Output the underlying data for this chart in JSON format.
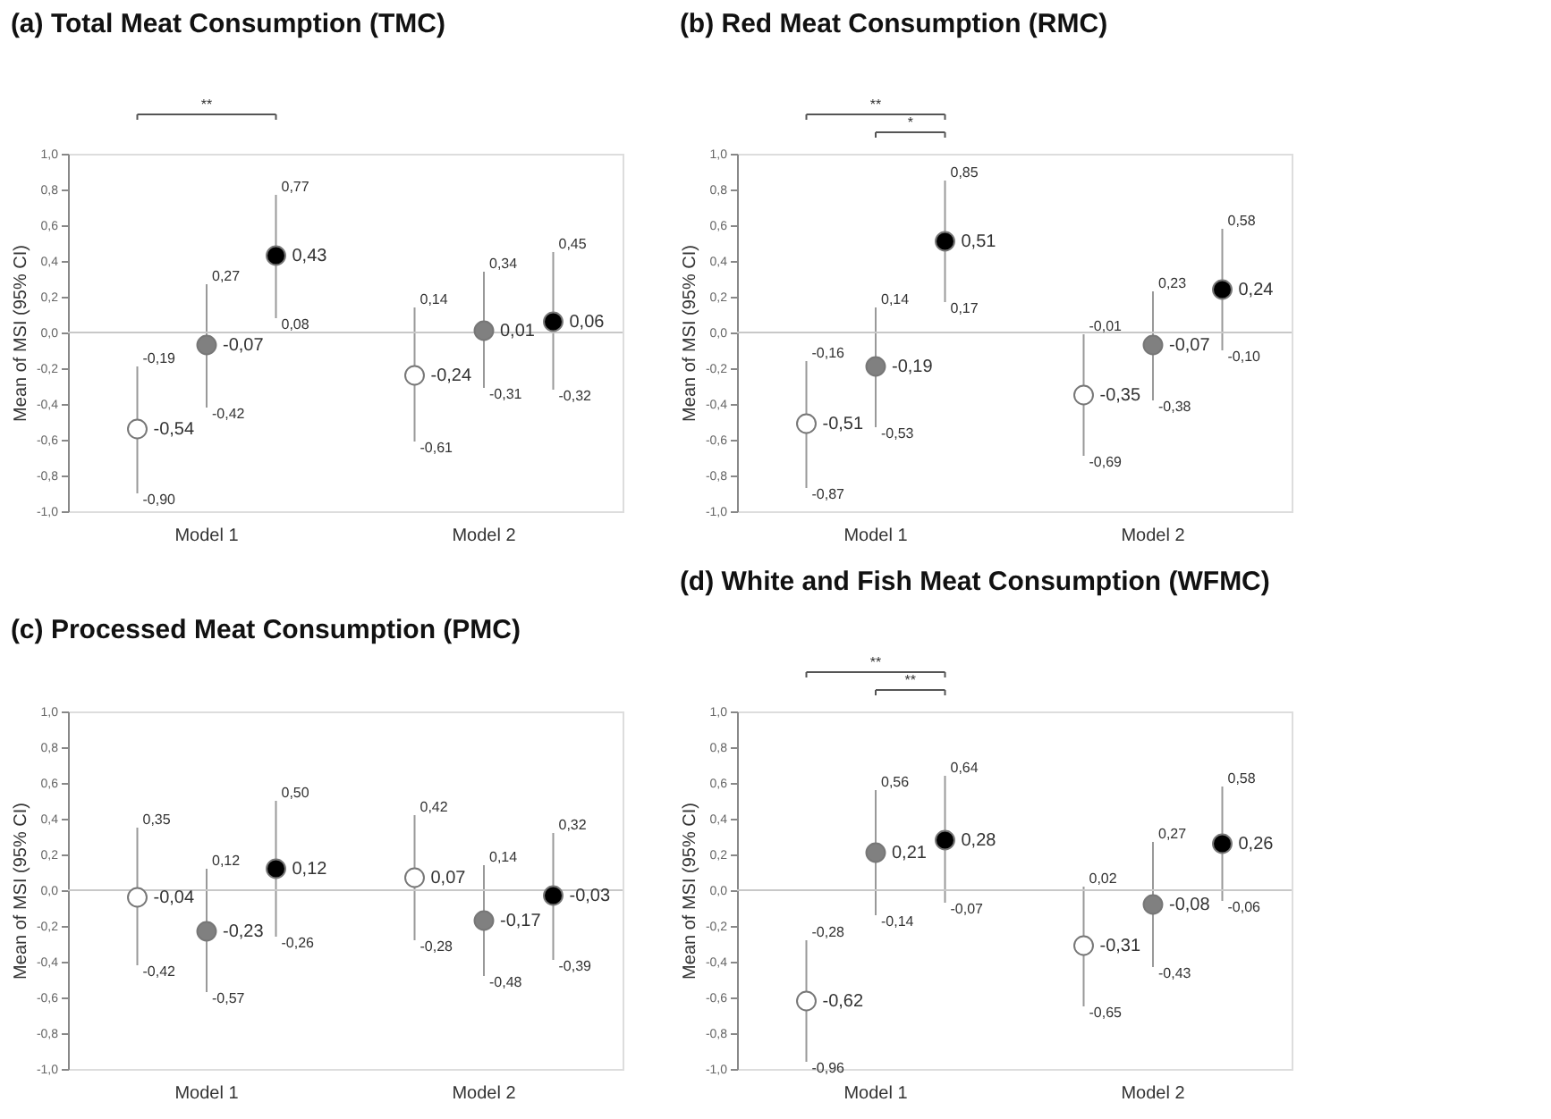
{
  "chart_data": [
    {
      "type": "scatter",
      "title": "(a) Total Meat Consumption (TMC)",
      "ylabel": "Mean of MSI (95% CI)",
      "categories": [
        "Model 1",
        "Model 2"
      ],
      "ylim": [
        -1.0,
        1.0
      ],
      "yticks": [
        {
          "value": -1.0,
          "label": "-1,0"
        },
        {
          "value": -0.8,
          "label": "-0,8"
        },
        {
          "value": -0.6,
          "label": "-0,6"
        },
        {
          "value": -0.4,
          "label": "-0,4"
        },
        {
          "value": -0.2,
          "label": "-0,2"
        },
        {
          "value": 0.0,
          "label": "0,0"
        },
        {
          "value": 0.2,
          "label": "0,2"
        },
        {
          "value": 0.4,
          "label": "0,4"
        },
        {
          "value": 0.6,
          "label": "0,6"
        },
        {
          "value": 0.8,
          "label": "0,8"
        },
        {
          "value": 1.0,
          "label": "1,0"
        }
      ],
      "marker": "circle",
      "ref_lines": [
        {
          "axis": "y",
          "value": 0,
          "color": "#c8c8c8"
        }
      ],
      "annotations": [
        "**",
        "-0,90",
        "-0,19",
        "-0,61",
        "0,14",
        "-0,42",
        "0,27",
        "-0,31",
        "0,34",
        "0,08",
        "0,77",
        "-0,32",
        "0,45"
      ],
      "series": [
        {
          "color": "#ffffff",
          "values": [
            -0.54,
            -0.24
          ],
          "value_labels": [
            "-0,54",
            "-0,24"
          ],
          "errors": [
            [
              -0.9,
              -0.19
            ],
            [
              -0.61,
              0.14
            ]
          ]
        },
        {
          "color": "#808080",
          "values": [
            -0.07,
            0.01
          ],
          "value_labels": [
            "-0,07",
            "0,01"
          ],
          "errors": [
            [
              -0.42,
              0.27
            ],
            [
              -0.31,
              0.34
            ]
          ]
        },
        {
          "color": "#000000",
          "values": [
            0.43,
            0.06
          ],
          "value_labels": [
            "0,43",
            "0,06"
          ],
          "errors": [
            [
              0.08,
              0.77
            ],
            [
              -0.32,
              0.45
            ]
          ]
        }
      ]
    },
    {
      "type": "scatter",
      "title": "(b) Red Meat Consumption (RMC)",
      "ylabel": "Mean of MSI (95% CI)",
      "categories": [
        "Model 1",
        "Model 2"
      ],
      "ylim": [
        -1.0,
        1.0
      ],
      "yticks": [
        {
          "value": -1.0,
          "label": "-1,0"
        },
        {
          "value": -0.8,
          "label": "-0,8"
        },
        {
          "value": -0.6,
          "label": "-0,6"
        },
        {
          "value": -0.4,
          "label": "-0,4"
        },
        {
          "value": -0.2,
          "label": "-0,2"
        },
        {
          "value": 0.0,
          "label": "0,0"
        },
        {
          "value": 0.2,
          "label": "0,2"
        },
        {
          "value": 0.4,
          "label": "0,4"
        },
        {
          "value": 0.6,
          "label": "0,6"
        },
        {
          "value": 0.8,
          "label": "0,8"
        },
        {
          "value": 1.0,
          "label": "1,0"
        }
      ],
      "marker": "circle",
      "ref_lines": [
        {
          "axis": "y",
          "value": 0,
          "color": "#c8c8c8"
        }
      ],
      "annotations": [
        "**",
        "*",
        "-0,87",
        "-0,16",
        "-0,69",
        "-0,01",
        "-0,53",
        "0,14",
        "-0,38",
        "0,23",
        "0,17",
        "0,85",
        "-0,10",
        "0,58"
      ],
      "series": [
        {
          "color": "#ffffff",
          "values": [
            -0.51,
            -0.35
          ],
          "value_labels": [
            "-0,51",
            "-0,35"
          ],
          "errors": [
            [
              -0.87,
              -0.16
            ],
            [
              -0.69,
              -0.01
            ]
          ]
        },
        {
          "color": "#808080",
          "values": [
            -0.19,
            -0.07
          ],
          "value_labels": [
            "-0,19",
            "-0,07"
          ],
          "errors": [
            [
              -0.53,
              0.14
            ],
            [
              -0.38,
              0.23
            ]
          ]
        },
        {
          "color": "#000000",
          "values": [
            0.51,
            0.24
          ],
          "value_labels": [
            "0,51",
            "0,24"
          ],
          "errors": [
            [
              0.17,
              0.85
            ],
            [
              -0.1,
              0.58
            ]
          ]
        }
      ]
    },
    {
      "type": "scatter",
      "title": "(c) Processed Meat Consumption (PMC)",
      "ylabel": "Mean of MSI (95% CI)",
      "categories": [
        "Model 1",
        "Model 2"
      ],
      "ylim": [
        -1.0,
        1.0
      ],
      "yticks": [
        {
          "value": -1.0,
          "label": "-1,0"
        },
        {
          "value": -0.8,
          "label": "-0,8"
        },
        {
          "value": -0.6,
          "label": "-0,6"
        },
        {
          "value": -0.4,
          "label": "-0,4"
        },
        {
          "value": -0.2,
          "label": "-0,2"
        },
        {
          "value": 0.0,
          "label": "0,0"
        },
        {
          "value": 0.2,
          "label": "0,2"
        },
        {
          "value": 0.4,
          "label": "0,4"
        },
        {
          "value": 0.6,
          "label": "0,6"
        },
        {
          "value": 0.8,
          "label": "0,8"
        },
        {
          "value": 1.0,
          "label": "1,0"
        }
      ],
      "marker": "circle",
      "ref_lines": [
        {
          "axis": "y",
          "value": 0,
          "color": "#c8c8c8"
        }
      ],
      "annotations": [
        "-0,42",
        "0,35",
        "-0,28",
        "0,42",
        "-0,57",
        "0,12",
        "-0,48",
        "0,14",
        "-0,26",
        "0,50",
        "-0,39",
        "0,32"
      ],
      "series": [
        {
          "color": "#ffffff",
          "values": [
            -0.04,
            0.07
          ],
          "value_labels": [
            "-0,04",
            "0,07"
          ],
          "errors": [
            [
              -0.42,
              0.35
            ],
            [
              -0.28,
              0.42
            ]
          ]
        },
        {
          "color": "#808080",
          "values": [
            -0.23,
            -0.17
          ],
          "value_labels": [
            "-0,23",
            "-0,17"
          ],
          "errors": [
            [
              -0.57,
              0.12
            ],
            [
              -0.48,
              0.14
            ]
          ]
        },
        {
          "color": "#000000",
          "values": [
            0.12,
            -0.03
          ],
          "value_labels": [
            "0,12",
            "-0,03"
          ],
          "errors": [
            [
              -0.26,
              0.5
            ],
            [
              -0.39,
              0.32
            ]
          ]
        }
      ]
    },
    {
      "type": "scatter",
      "title": "(d) White and Fish Meat Consumption (WFMC)",
      "ylabel": "Mean of MSI (95% CI)",
      "categories": [
        "Model 1",
        "Model 2"
      ],
      "ylim": [
        -1.0,
        1.0
      ],
      "yticks": [
        {
          "value": -1.0,
          "label": "-1,0"
        },
        {
          "value": -0.8,
          "label": "-0,8"
        },
        {
          "value": -0.6,
          "label": "-0,6"
        },
        {
          "value": -0.4,
          "label": "-0,4"
        },
        {
          "value": -0.2,
          "label": "-0,2"
        },
        {
          "value": 0.0,
          "label": "0,0"
        },
        {
          "value": 0.2,
          "label": "0,2"
        },
        {
          "value": 0.4,
          "label": "0,4"
        },
        {
          "value": 0.6,
          "label": "0,6"
        },
        {
          "value": 0.8,
          "label": "0,8"
        },
        {
          "value": 1.0,
          "label": "1,0"
        }
      ],
      "marker": "circle",
      "ref_lines": [
        {
          "axis": "y",
          "value": 0,
          "color": "#c8c8c8"
        }
      ],
      "annotations": [
        "**",
        "**",
        "-0,96",
        "-0,28",
        "-0,65",
        "0,02",
        "-0,14",
        "0,56",
        "-0,43",
        "0,27",
        "-0,07",
        "0,64",
        "-0,06",
        "0,58"
      ],
      "series": [
        {
          "color": "#ffffff",
          "values": [
            -0.62,
            -0.31
          ],
          "value_labels": [
            "-0,62",
            "-0,31"
          ],
          "errors": [
            [
              -0.96,
              -0.28
            ],
            [
              -0.65,
              0.02
            ]
          ]
        },
        {
          "color": "#808080",
          "values": [
            0.21,
            -0.08
          ],
          "value_labels": [
            "0,21",
            "-0,08"
          ],
          "errors": [
            [
              -0.14,
              0.56
            ],
            [
              -0.43,
              0.27
            ]
          ]
        },
        {
          "color": "#000000",
          "values": [
            0.28,
            0.26
          ],
          "value_labels": [
            "0,28",
            "0,26"
          ],
          "errors": [
            [
              -0.07,
              0.64
            ],
            [
              -0.06,
              0.58
            ]
          ]
        }
      ]
    }
  ]
}
